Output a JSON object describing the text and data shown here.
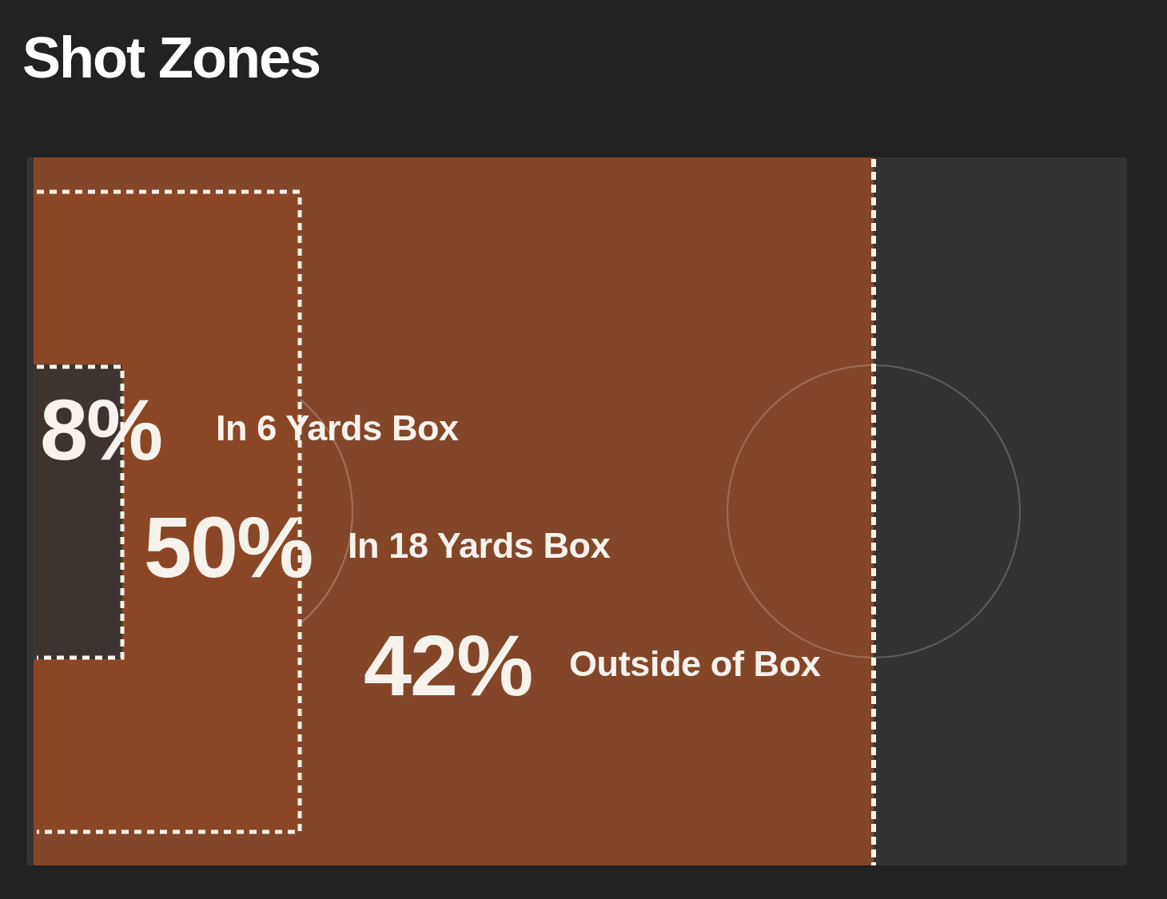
{
  "chart_data": {
    "type": "other",
    "title": "Shot Zones",
    "categories": [
      "In 6 Yards Box",
      "In 18 Yards Box",
      "Outside of Box"
    ],
    "values": [
      8,
      50,
      42
    ],
    "value_labels": [
      "8%",
      "50%",
      "42%"
    ],
    "colors": [
      "#3d3430",
      "#8b4725",
      "#834628"
    ]
  }
}
